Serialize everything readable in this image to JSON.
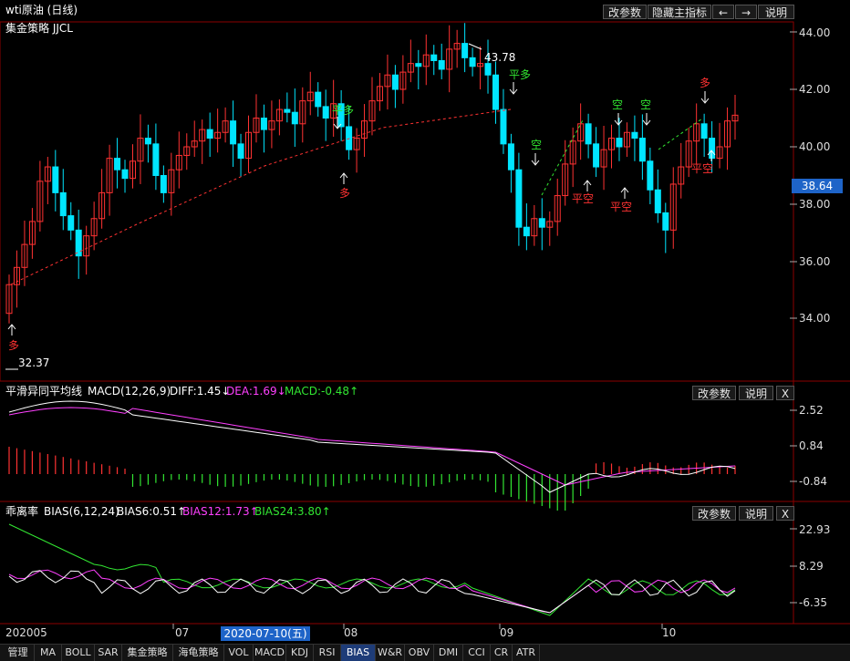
{
  "header": {
    "title": "wti原油 (日线)",
    "buttons": [
      "改参数",
      "隐藏主指标",
      "←",
      "→",
      "说明"
    ]
  },
  "main_panel": {
    "indicator_name": "集金策略 JJCL",
    "current_price": "38.64",
    "y_ticks": [
      "44.00",
      "42.00",
      "40.00",
      "38.00",
      "36.00",
      "34.00"
    ],
    "high_label": "43.78",
    "low_label": "32.37",
    "signals": [
      "多",
      "平多",
      "多",
      "平多",
      "空",
      "平空",
      "空",
      "平空",
      "空",
      "多",
      "平空"
    ]
  },
  "macd_panel": {
    "title": "平滑异同平均线",
    "params": "MACD(12,26,9)",
    "diff": "DIFF:1.45↓",
    "dea": "DEA:1.69↓",
    "macd": "MACD:-0.48↑",
    "buttons": [
      "改参数",
      "说明",
      "X"
    ],
    "y_ticks": [
      "2.52",
      "0.84",
      "-0.84"
    ]
  },
  "bias_panel": {
    "title": "乖离率",
    "params": "BIAS(6,12,24)",
    "bias6": "BIAS6:0.51↑",
    "bias12": "BIAS12:1.73↑",
    "bias24": "BIAS24:3.80↑",
    "buttons": [
      "改参数",
      "说明",
      "X"
    ],
    "y_ticks": [
      "22.93",
      "8.29",
      "-6.35"
    ]
  },
  "x_axis": {
    "labels": [
      "202005",
      "07",
      "08",
      "09",
      "10"
    ],
    "cursor_date": "2020-07-10(五)"
  },
  "bottom_tabs": [
    "管理",
    "MA",
    "BOLL",
    "SAR",
    "集金策略",
    "海龟策略",
    "VOL",
    "MACD",
    "KDJ",
    "RSI",
    "BIAS",
    "W&R",
    "OBV",
    "DMI",
    "CCI",
    "CR",
    "ATR"
  ],
  "colors": {
    "up": "#ff3232",
    "down": "#00e5ff",
    "diff": "#ffffff",
    "dea": "#ff40ff",
    "macd_pos": "#ff3232",
    "macd_neg": "#32e632",
    "bias6": "#ffffff",
    "bias12": "#ff40ff",
    "bias24": "#32e632",
    "grid": "#8b0000"
  }
}
